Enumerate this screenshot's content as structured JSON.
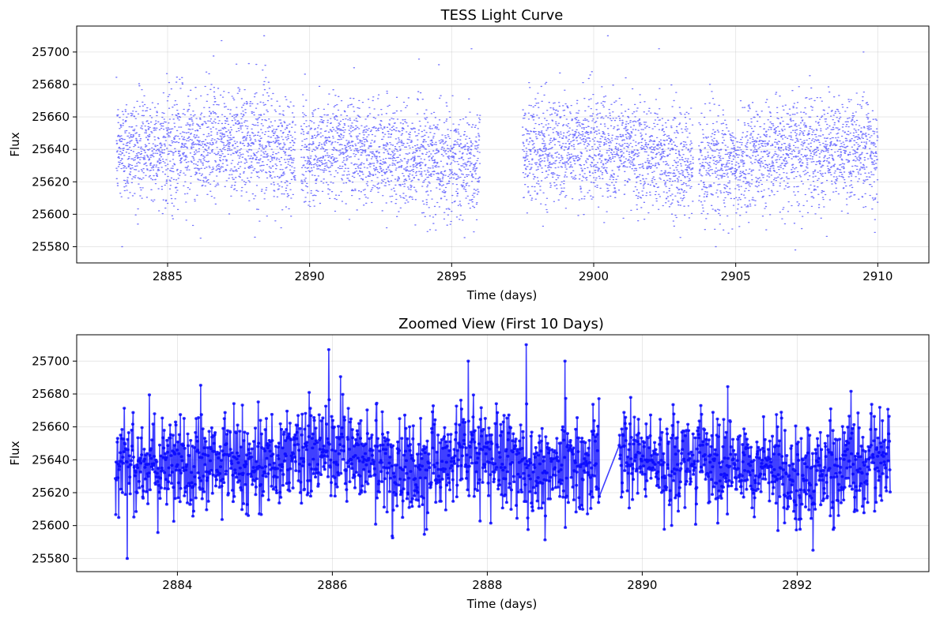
{
  "chart_data": [
    {
      "type": "scatter",
      "title": "TESS Light Curve",
      "xlabel": "Time (days)",
      "ylabel": "Flux",
      "xlim": [
        2881.8,
        2911.8
      ],
      "ylim": [
        25570,
        25716
      ],
      "xticks": [
        2885,
        2890,
        2895,
        2900,
        2905,
        2910
      ],
      "yticks": [
        25580,
        25600,
        25620,
        25640,
        25660,
        25680,
        25700
      ],
      "grid": true,
      "color": "#0000ff",
      "series": [
        {
          "segments": [
            [
              2883.2,
              2889.5
            ],
            [
              2889.7,
              2896.0
            ],
            [
              2897.5,
              2903.5
            ],
            [
              2903.7,
              2910.0
            ]
          ],
          "baseline": [
            [
              2883.2,
              25640
            ],
            [
              2886.0,
              25643
            ],
            [
              2888.0,
              25645
            ],
            [
              2889.5,
              25635
            ],
            [
              2891.0,
              25643
            ],
            [
              2893.0,
              25635
            ],
            [
              2895.0,
              25630
            ],
            [
              2896.0,
              25632
            ],
            [
              2897.5,
              25640
            ],
            [
              2900.0,
              25642
            ],
            [
              2902.0,
              25638
            ],
            [
              2903.5,
              25628
            ],
            [
              2905.0,
              25632
            ],
            [
              2907.0,
              25640
            ],
            [
              2910.0,
              25638
            ]
          ],
          "scatter_sd": 16,
          "n_points": 6400,
          "outliers": [
            [
              2883.4,
              25580
            ],
            [
              2886.9,
              25707
            ],
            [
              2888.4,
              25710
            ],
            [
              2895.7,
              25702
            ],
            [
              2900.5,
              25710
            ],
            [
              2902.3,
              25702
            ],
            [
              2904.3,
              25580
            ],
            [
              2907.1,
              25578
            ],
            [
              2909.5,
              25700
            ]
          ]
        }
      ]
    },
    {
      "type": "line",
      "title": "Zoomed View (First 10 Days)",
      "xlabel": "Time (days)",
      "ylabel": "Flux",
      "xlim": [
        2882.7,
        2893.7
      ],
      "ylim": [
        25572,
        25716
      ],
      "xticks": [
        2884,
        2886,
        2888,
        2890,
        2892
      ],
      "yticks": [
        25580,
        25600,
        25620,
        25640,
        25660,
        25680,
        25700
      ],
      "grid": true,
      "color": "#0000ff",
      "markers": true,
      "series": [
        {
          "range": [
            2883.2,
            2893.2
          ],
          "gap": [
            2889.45,
            2889.7
          ],
          "baseline": [
            [
              2883.2,
              25640
            ],
            [
              2884.5,
              25636
            ],
            [
              2886.0,
              25645
            ],
            [
              2887.0,
              25633
            ],
            [
              2887.8,
              25645
            ],
            [
              2888.5,
              25634
            ],
            [
              2889.4,
              25638
            ],
            [
              2889.7,
              25640
            ],
            [
              2891.0,
              25640
            ],
            [
              2892.0,
              25633
            ],
            [
              2893.2,
              25640
            ]
          ],
          "scatter_sd": 15,
          "n_points": 2100,
          "outliers": [
            [
              2883.35,
              25580
            ],
            [
              2885.95,
              25707
            ],
            [
              2887.75,
              25700
            ],
            [
              2888.5,
              25710
            ],
            [
              2889.0,
              25700
            ],
            [
              2892.2,
              25585
            ]
          ]
        }
      ]
    }
  ]
}
